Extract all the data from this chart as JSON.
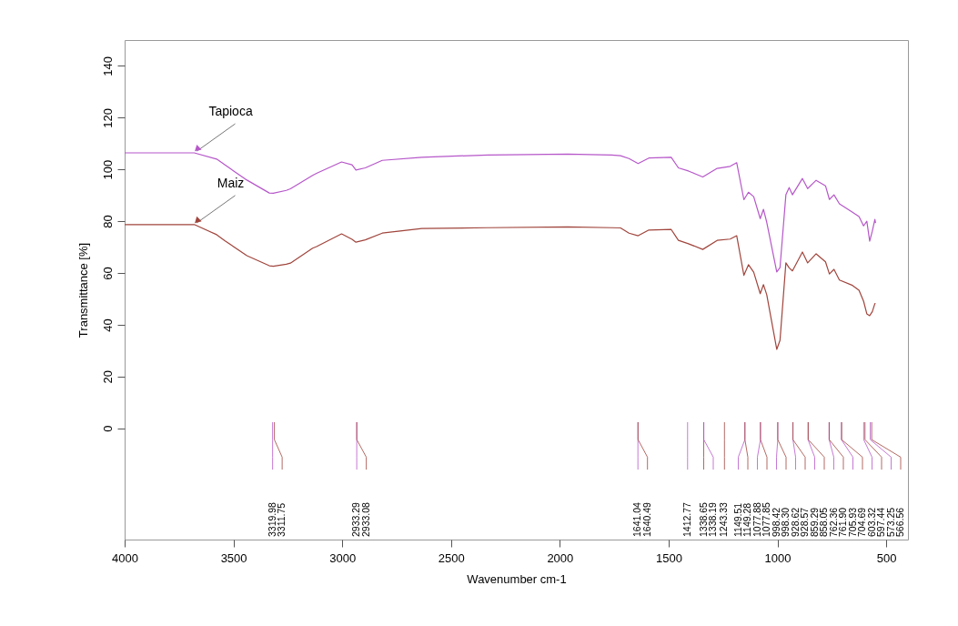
{
  "chart_data": {
    "type": "line",
    "xlabel": "Wavenumber cm-1",
    "ylabel": "Transmittance [%]",
    "xlim": [
      4000,
      400
    ],
    "ylim": [
      -43,
      150
    ],
    "xticks": [
      4000,
      3500,
      3000,
      2500,
      2000,
      1500,
      1000,
      500
    ],
    "yticks": [
      0,
      20,
      40,
      60,
      80,
      100,
      120,
      140
    ],
    "x": [
      4000,
      3680,
      3577,
      3540,
      3438,
      3335,
      3317,
      3257,
      3238,
      3136,
      3118,
      3003,
      2955,
      2937,
      2894,
      2816,
      2634,
      2332,
      1964,
      1761,
      1721,
      1682,
      1640,
      1591,
      1488,
      1455,
      1409,
      1343,
      1277,
      1217,
      1187,
      1154,
      1133,
      1109,
      1079,
      1064,
      1049,
      1003,
      988,
      961,
      946,
      931,
      885,
      861,
      822,
      779,
      761,
      740,
      715,
      655,
      625,
      604,
      589,
      576,
      564,
      552,
      549
    ],
    "series": [
      {
        "name": "Tapioca",
        "color": "#b657c9",
        "values": [
          106.4,
          106.4,
          104.0,
          101.8,
          95.9,
          90.9,
          90.8,
          91.9,
          92.5,
          97.7,
          98.5,
          102.9,
          101.8,
          99.8,
          100.6,
          103.5,
          104.7,
          105.6,
          105.9,
          105.6,
          105.3,
          104.2,
          102.3,
          104.4,
          104.7,
          100.6,
          99.4,
          97.1,
          100.4,
          101.2,
          102.6,
          88.3,
          91.2,
          89.5,
          81.0,
          84.6,
          79.6,
          60.4,
          62.1,
          90.2,
          93.0,
          90.2,
          96.5,
          92.6,
          95.8,
          93.7,
          88.4,
          90.2,
          86.7,
          83.5,
          81.8,
          78.2,
          80.0,
          72.3,
          76.1,
          80.7,
          79.3
        ]
      },
      {
        "name": "Maiz",
        "color": "#a0453c",
        "values": [
          78.7,
          78.7,
          74.8,
          72.5,
          66.7,
          62.8,
          62.6,
          63.4,
          63.8,
          69.6,
          70.2,
          75.1,
          73.0,
          71.9,
          72.8,
          75.4,
          77.2,
          77.5,
          77.8,
          77.5,
          77.4,
          75.4,
          74.4,
          76.6,
          76.8,
          72.6,
          71.3,
          69.1,
          72.6,
          73.1,
          74.4,
          59.1,
          63.2,
          60.3,
          52.0,
          55.5,
          51.6,
          30.5,
          34.0,
          63.9,
          62.0,
          60.8,
          68.1,
          63.9,
          67.4,
          64.3,
          59.6,
          61.4,
          57.3,
          55.2,
          53.3,
          49.1,
          44.2,
          43.5,
          45.0,
          48.2,
          48.2
        ]
      }
    ],
    "annotations": [
      "3319.98",
      "3311.75",
      "2933.29",
      "2933.08",
      "1641.04",
      "1640.49",
      "1412.77",
      "1338.65",
      "1338.19",
      "1243.33",
      "1149.51",
      "1149.28",
      "1077.88",
      "1077.85",
      "998.42",
      "998.30",
      "928.62",
      "928.57",
      "859.29",
      "858.05",
      "762.36",
      "761.90",
      "705.93",
      "704.69",
      "603.32",
      "597.44",
      "573.25",
      "566.56"
    ]
  }
}
